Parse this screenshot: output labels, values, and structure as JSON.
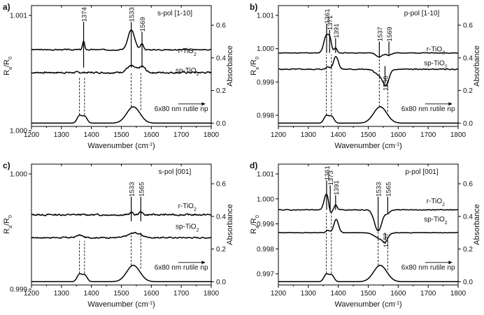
{
  "chart_data": [
    {
      "type": "line",
      "panel_label": "a)",
      "title": "s-pol [1-10]",
      "xlabel_main": "Wavenumber (cm",
      "xlabel_sup": "-1",
      "xlabel_end": ")",
      "ylabel_main": "R",
      "ylabel_sub1": "a",
      "ylabel_mid": "/R",
      "ylabel_sub2": "0",
      "ylabel_right": "Absorbance",
      "xlim": [
        1200,
        1800
      ],
      "xticks": [
        "1200",
        "1300",
        "1400",
        "1500",
        "1600",
        "1700",
        "1800"
      ],
      "left_ticks": [
        {
          "v": 1.001,
          "label": "1.001"
        },
        {
          "v": 1.0,
          "label": "1.000"
        }
      ],
      "right_ticks": [
        {
          "v": 0.6,
          "label": "0.6"
        },
        {
          "v": 0.4,
          "label": "0.4"
        },
        {
          "v": 0.2,
          "label": "0.2"
        },
        {
          "v": 0.0,
          "label": "0.0"
        }
      ],
      "ylim_right": [
        -0.02,
        0.72
      ],
      "series": [
        {
          "name": "r-TiO2",
          "label_main": "r-TiO",
          "label_sub": "2",
          "label_x": 1720,
          "label_y": 0.43,
          "baseline": 0.45,
          "noise": 0.006,
          "seed": 3,
          "peaks": [
            [
              1374,
              0.05,
              3.5
            ],
            [
              1533,
              0.12,
              11
            ],
            [
              1569,
              0.035,
              5
            ]
          ]
        },
        {
          "name": "sp-TiO2",
          "label_main": "sp-TiO",
          "label_sub": "2",
          "label_x": 1720,
          "label_y": 0.31,
          "baseline": 0.31,
          "noise": 0.009,
          "seed": 7,
          "peaks": [
            [
              1533,
              0.04,
              15
            ],
            [
              1570,
              0.035,
              10
            ]
          ]
        },
        {
          "name": "6x80 nm rutile np",
          "label_main": "6x80 nm rutile np",
          "label_sub": "",
          "label_x": 1700,
          "label_y": 0.075,
          "arrow": true,
          "baseline": 0.0,
          "noise": 0.0,
          "seed": 1,
          "peaks": [
            [
              1360,
              0.045,
              8
            ],
            [
              1378,
              0.04,
              8
            ],
            [
              1540,
              0.1,
              22
            ]
          ]
        }
      ],
      "marker_lines": [
        {
          "x": 1374,
          "label": "1374",
          "y0": 0.34,
          "y1": 0.62
        },
        {
          "x": 1533,
          "label": "1533",
          "y0": 0.34,
          "y1": 0.62
        },
        {
          "x": 1569,
          "label": "1569",
          "y0": 0.34,
          "y1": 0.56
        }
      ],
      "dashed_lines": [
        {
          "x": 1360,
          "y0": 0.05,
          "y1": 0.28
        },
        {
          "x": 1377,
          "y0": 0.05,
          "y1": 0.28
        },
        {
          "x": 1533,
          "y0": 0.1,
          "y1": 0.31
        },
        {
          "x": 1565,
          "y0": 0.08,
          "y1": 0.31
        }
      ]
    },
    {
      "type": "line",
      "panel_label": "b)",
      "title": "p-pol [1-10]",
      "xlabel_main": "Wavenumber (cm",
      "xlabel_sup": "-1",
      "xlabel_end": ")",
      "ylabel_main": "R",
      "ylabel_sub1": "a",
      "ylabel_mid": "/R",
      "ylabel_sub2": "0",
      "ylabel_right": "Absorbance",
      "xlim": [
        1200,
        1800
      ],
      "xticks": [
        "1200",
        "1300",
        "1400",
        "1500",
        "1600",
        "1700",
        "1800"
      ],
      "left_ticks": [
        {
          "v": 1.001,
          "label": "1.001"
        },
        {
          "v": 1.0,
          "label": "1.000"
        },
        {
          "v": 0.999,
          "label": "0.999"
        },
        {
          "v": 0.998,
          "label": "0.998"
        }
      ],
      "right_ticks": [
        {
          "v": 0.6,
          "label": "0.6"
        },
        {
          "v": 0.4,
          "label": "0.4"
        },
        {
          "v": 0.2,
          "label": "0.2"
        },
        {
          "v": 0.0,
          "label": "0.0"
        }
      ],
      "ylim_right": [
        -0.02,
        0.72
      ],
      "series": [
        {
          "name": "r-TiO2",
          "label_main": "r-TiO",
          "label_sub": "2",
          "label_x": 1725,
          "label_y": 0.44,
          "baseline": 0.43,
          "noise": 0.003,
          "seed": 11,
          "peaks": [
            [
              1361,
              0.11,
              9
            ],
            [
              1373,
              0.05,
              5
            ],
            [
              1391,
              0.03,
              5
            ],
            [
              1537,
              -0.025,
              10
            ],
            [
              1569,
              -0.015,
              8
            ]
          ]
        },
        {
          "name": "sp-TiO2",
          "label_main": "sp-TiO",
          "label_sub": "2",
          "label_x": 1725,
          "label_y": 0.355,
          "baseline": 0.33,
          "noise": 0.005,
          "seed": 5,
          "peaks": [
            [
              1392,
              0.08,
              8
            ],
            [
              1365,
              0.015,
              6
            ],
            [
              1545,
              -0.045,
              18
            ],
            [
              1560,
              -0.07,
              9
            ]
          ]
        },
        {
          "name": "6x80 nm rutile np",
          "label_main": "6x80 nm rutile np",
          "label_sub": "",
          "label_x": 1700,
          "label_y": 0.075,
          "arrow": true,
          "baseline": 0.0,
          "noise": 0.0,
          "seed": 1,
          "peaks": [
            [
              1360,
              0.045,
              8
            ],
            [
              1378,
              0.04,
              8
            ],
            [
              1540,
              0.1,
              22
            ]
          ]
        }
      ],
      "marker_lines": [
        {
          "x": 1361,
          "label": "1361",
          "y0": 0.43,
          "y1": 0.61
        },
        {
          "x": 1371,
          "label": "1371",
          "y0": 0.43,
          "y1": 0.57
        },
        {
          "x": 1391,
          "label": "1391",
          "y0": 0.43,
          "y1": 0.52
        },
        {
          "x": 1537,
          "label": "1537",
          "y0": 0.41,
          "y1": 0.5
        },
        {
          "x": 1569,
          "label": "1569",
          "y0": 0.41,
          "y1": 0.5
        },
        {
          "x": 1556,
          "label": "1556",
          "y0": 0.25,
          "y1": 0.35,
          "label_side": "below"
        }
      ],
      "dashed_lines": [
        {
          "x": 1360,
          "y0": 0.05,
          "y1": 0.42
        },
        {
          "x": 1377,
          "y0": 0.05,
          "y1": 0.42
        },
        {
          "x": 1537,
          "y0": 0.1,
          "y1": 0.41
        },
        {
          "x": 1565,
          "y0": 0.07,
          "y1": 0.26
        }
      ]
    },
    {
      "type": "line",
      "panel_label": "c)",
      "title": "s-pol [001]",
      "xlabel_main": "Wavenumber (cm",
      "xlabel_sup": "-1",
      "xlabel_end": ")",
      "ylabel_main": "R",
      "ylabel_sub1": "a",
      "ylabel_mid": "/R",
      "ylabel_sub2": "0",
      "ylabel_right": "Absorbance",
      "xlim": [
        1200,
        1800
      ],
      "xticks": [
        "1200",
        "1300",
        "1400",
        "1500",
        "1600",
        "1700",
        "1800"
      ],
      "left_ticks": [
        {
          "v": 1.0,
          "label": "1.000"
        },
        {
          "v": 0.999,
          "label": "0.999"
        }
      ],
      "right_ticks": [
        {
          "v": 0.6,
          "label": "0.6"
        },
        {
          "v": 0.4,
          "label": "0.4"
        },
        {
          "v": 0.2,
          "label": "0.2"
        },
        {
          "v": 0.0,
          "label": "0.0"
        }
      ],
      "ylim_right": [
        -0.02,
        0.72
      ],
      "series": [
        {
          "name": "r-TiO2",
          "label_main": "r-TiO",
          "label_sub": "2",
          "label_x": 1720,
          "label_y": 0.45,
          "baseline": 0.41,
          "noise": 0.009,
          "seed": 13,
          "peaks": [
            [
              1533,
              0.015,
              5
            ],
            [
              1565,
              0.02,
              5
            ]
          ]
        },
        {
          "name": "sp-TiO2",
          "label_main": "sp-TiO",
          "label_sub": "2",
          "label_x": 1720,
          "label_y": 0.325,
          "baseline": 0.27,
          "noise": 0.007,
          "seed": 17,
          "peaks": [
            [
              1360,
              0.015,
              10
            ],
            [
              1545,
              0.03,
              20
            ]
          ]
        },
        {
          "name": "6x80 nm rutile np",
          "label_main": "6x80 nm rutile np",
          "label_sub": "",
          "label_x": 1700,
          "label_y": 0.075,
          "arrow": true,
          "baseline": 0.0,
          "noise": 0.0,
          "seed": 1,
          "peaks": [
            [
              1360,
              0.045,
              8
            ],
            [
              1378,
              0.04,
              8
            ],
            [
              1540,
              0.1,
              22
            ]
          ]
        }
      ],
      "marker_lines": [
        {
          "x": 1533,
          "label": "1533",
          "y0": 0.37,
          "y1": 0.52
        },
        {
          "x": 1565,
          "label": "1565",
          "y0": 0.37,
          "y1": 0.52
        }
      ],
      "dashed_lines": [
        {
          "x": 1360,
          "y0": 0.05,
          "y1": 0.25
        },
        {
          "x": 1377,
          "y0": 0.05,
          "y1": 0.25
        },
        {
          "x": 1533,
          "y0": 0.1,
          "y1": 0.3
        },
        {
          "x": 1565,
          "y0": 0.08,
          "y1": 0.3
        }
      ]
    },
    {
      "type": "line",
      "panel_label": "d)",
      "title": "p-pol [001]",
      "xlabel_main": "Wavenumber (cm",
      "xlabel_sup": "-1",
      "xlabel_end": ")",
      "ylabel_main": "R",
      "ylabel_sub1": "a",
      "ylabel_mid": "/R",
      "ylabel_sub2": "0",
      "ylabel_right": "Absorbance",
      "xlim": [
        1200,
        1800
      ],
      "xticks": [
        "1200",
        "1300",
        "1400",
        "1500",
        "1600",
        "1700",
        "1800"
      ],
      "left_ticks": [
        {
          "v": 1.001,
          "label": "1.001"
        },
        {
          "v": 1.0,
          "label": "1.000"
        },
        {
          "v": 0.999,
          "label": "0.999"
        },
        {
          "v": 0.998,
          "label": "0.998"
        },
        {
          "v": 0.997,
          "label": "0.997"
        }
      ],
      "right_ticks": [
        {
          "v": 0.6,
          "label": "0.6"
        },
        {
          "v": 0.4,
          "label": "0.4"
        },
        {
          "v": 0.2,
          "label": "0.2"
        },
        {
          "v": 0.0,
          "label": "0.0"
        }
      ],
      "ylim_right": [
        -0.02,
        0.72
      ],
      "series": [
        {
          "name": "r-TiO2",
          "label_main": "r-TiO",
          "label_sub": "2",
          "label_x": 1725,
          "label_y": 0.48,
          "baseline": 0.44,
          "noise": 0.004,
          "seed": 19,
          "peaks": [
            [
              1361,
              0.1,
              8
            ],
            [
              1373,
              -0.04,
              5
            ],
            [
              1391,
              0.03,
              5
            ],
            [
              1533,
              -0.13,
              12
            ],
            [
              1565,
              -0.02,
              8
            ]
          ]
        },
        {
          "name": "sp-TiO2",
          "label_main": "sp-TiO",
          "label_sub": "2",
          "label_x": 1725,
          "label_y": 0.37,
          "baseline": 0.3,
          "noise": 0.003,
          "seed": 23,
          "peaks": [
            [
              1393,
              0.08,
              8
            ],
            [
              1365,
              0.015,
              6
            ],
            [
              1540,
              -0.035,
              18
            ],
            [
              1557,
              -0.035,
              8
            ]
          ]
        },
        {
          "name": "6x80 nm rutile np",
          "label_main": "6x80 nm rutile np",
          "label_sub": "",
          "label_x": 1700,
          "label_y": 0.075,
          "arrow": true,
          "baseline": 0.0,
          "noise": 0.0,
          "seed": 1,
          "peaks": [
            [
              1360,
              0.045,
              8
            ],
            [
              1378,
              0.04,
              8
            ],
            [
              1540,
              0.1,
              22
            ]
          ]
        }
      ],
      "marker_lines": [
        {
          "x": 1361,
          "label": "1361",
          "y0": 0.44,
          "y1": 0.62
        },
        {
          "x": 1373,
          "label": "1373",
          "y0": 0.44,
          "y1": 0.59
        },
        {
          "x": 1391,
          "label": "1391",
          "y0": 0.44,
          "y1": 0.53
        },
        {
          "x": 1533,
          "label": "1533",
          "y0": 0.31,
          "y1": 0.52
        },
        {
          "x": 1565,
          "label": "1565",
          "y0": 0.42,
          "y1": 0.52
        },
        {
          "x": 1557,
          "label": "1557",
          "y0": 0.26,
          "y1": 0.3,
          "label_side": "below"
        }
      ],
      "dashed_lines": [
        {
          "x": 1360,
          "y0": 0.05,
          "y1": 0.42
        },
        {
          "x": 1377,
          "y0": 0.05,
          "y1": 0.42
        },
        {
          "x": 1533,
          "y0": 0.1,
          "y1": 0.31
        },
        {
          "x": 1565,
          "y0": 0.07,
          "y1": 0.27
        }
      ]
    }
  ]
}
